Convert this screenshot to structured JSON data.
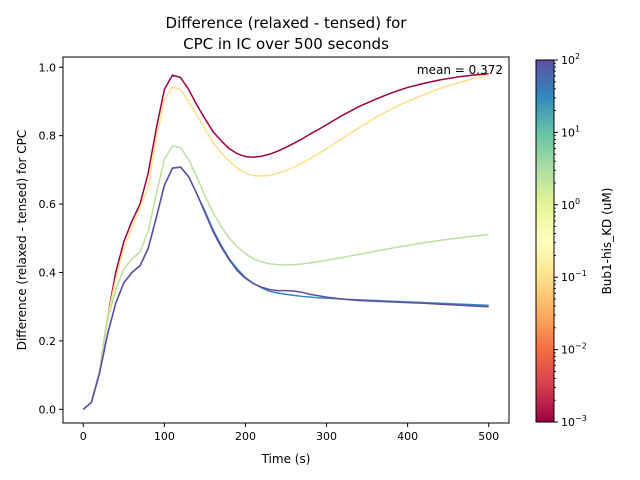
{
  "chart_data": {
    "type": "line",
    "title_line1": "Difference (relaxed - tensed) for",
    "title_line2": "CPC in IC over 500 seconds",
    "xlabel": "Time (s)",
    "ylabel": "Difference (relaxed - tensed) for CPC",
    "xlim": [
      -25,
      525
    ],
    "ylim": [
      -0.04,
      1.03
    ],
    "xticks": [
      0,
      100,
      200,
      300,
      400,
      500
    ],
    "yticks": [
      0.0,
      0.2,
      0.4,
      0.6,
      0.8,
      1.0
    ],
    "xtick_labels": [
      "0",
      "100",
      "200",
      "300",
      "400",
      "500"
    ],
    "ytick_labels": [
      "0.0",
      "0.2",
      "0.4",
      "0.6",
      "0.8",
      "1.0"
    ],
    "annotation": "mean = 0.372",
    "grid": false,
    "colorbar": {
      "label": "Bub1-his_KD (uM)",
      "scale": "log",
      "range": [
        0.001,
        100
      ],
      "ticks": [
        {
          "value": 0.001,
          "base": "10",
          "exp": "−3"
        },
        {
          "value": 0.01,
          "base": "10",
          "exp": "−2"
        },
        {
          "value": 0.1,
          "base": "10",
          "exp": "−1"
        },
        {
          "value": 1,
          "base": "10",
          "exp": "0"
        },
        {
          "value": 10,
          "base": "10",
          "exp": "1"
        },
        {
          "value": 100,
          "base": "10",
          "exp": "2"
        }
      ]
    },
    "x": [
      0,
      10,
      20,
      30,
      40,
      50,
      60,
      70,
      80,
      90,
      100,
      110,
      120,
      130,
      140,
      150,
      160,
      170,
      180,
      190,
      200,
      210,
      220,
      230,
      240,
      250,
      260,
      270,
      280,
      290,
      300,
      320,
      340,
      360,
      380,
      400,
      420,
      440,
      460,
      480,
      500
    ],
    "series": [
      {
        "kd": 0.001,
        "color": "#9e0142",
        "values": [
          0,
          0.02,
          0.11,
          0.27,
          0.4,
          0.49,
          0.55,
          0.6,
          0.69,
          0.82,
          0.935,
          0.977,
          0.97,
          0.935,
          0.89,
          0.85,
          0.812,
          0.785,
          0.762,
          0.747,
          0.739,
          0.737,
          0.74,
          0.746,
          0.755,
          0.766,
          0.778,
          0.791,
          0.805,
          0.818,
          0.832,
          0.86,
          0.885,
          0.906,
          0.925,
          0.941,
          0.953,
          0.963,
          0.971,
          0.977,
          0.981
        ]
      },
      {
        "kd": 0.1,
        "color": "#fee08b",
        "values": [
          0,
          0.02,
          0.11,
          0.27,
          0.38,
          0.47,
          0.53,
          0.59,
          0.65,
          0.79,
          0.905,
          0.942,
          0.935,
          0.9,
          0.86,
          0.82,
          0.78,
          0.75,
          0.725,
          0.705,
          0.69,
          0.683,
          0.682,
          0.684,
          0.69,
          0.698,
          0.708,
          0.72,
          0.733,
          0.747,
          0.762,
          0.793,
          0.823,
          0.852,
          0.878,
          0.9,
          0.92,
          0.938,
          0.953,
          0.966,
          0.978
        ]
      },
      {
        "kd": 1,
        "color": "#b8e3a0",
        "values": [
          0,
          0.02,
          0.11,
          0.26,
          0.35,
          0.41,
          0.44,
          0.46,
          0.52,
          0.63,
          0.73,
          0.77,
          0.765,
          0.73,
          0.68,
          0.625,
          0.575,
          0.535,
          0.5,
          0.475,
          0.455,
          0.44,
          0.431,
          0.425,
          0.423,
          0.422,
          0.423,
          0.425,
          0.428,
          0.432,
          0.436,
          0.444,
          0.453,
          0.462,
          0.471,
          0.479,
          0.487,
          0.494,
          0.5,
          0.506,
          0.511
        ]
      },
      {
        "kd": 10,
        "color": "#3288bd",
        "values": [
          0,
          0.02,
          0.105,
          0.22,
          0.31,
          0.37,
          0.4,
          0.42,
          0.47,
          0.56,
          0.655,
          0.705,
          0.708,
          0.68,
          0.63,
          0.58,
          0.525,
          0.48,
          0.44,
          0.41,
          0.385,
          0.368,
          0.355,
          0.345,
          0.34,
          0.336,
          0.333,
          0.33,
          0.328,
          0.326,
          0.325,
          0.322,
          0.32,
          0.318,
          0.316,
          0.314,
          0.312,
          0.31,
          0.308,
          0.306,
          0.304
        ]
      },
      {
        "kd": 100,
        "color": "#5e4fa2",
        "values": [
          0,
          0.02,
          0.105,
          0.22,
          0.31,
          0.37,
          0.4,
          0.42,
          0.47,
          0.56,
          0.655,
          0.705,
          0.708,
          0.68,
          0.63,
          0.575,
          0.52,
          0.475,
          0.437,
          0.405,
          0.383,
          0.367,
          0.357,
          0.35,
          0.347,
          0.347,
          0.346,
          0.342,
          0.336,
          0.332,
          0.328,
          0.322,
          0.318,
          0.316,
          0.314,
          0.312,
          0.31,
          0.307,
          0.305,
          0.302,
          0.3
        ]
      }
    ]
  }
}
